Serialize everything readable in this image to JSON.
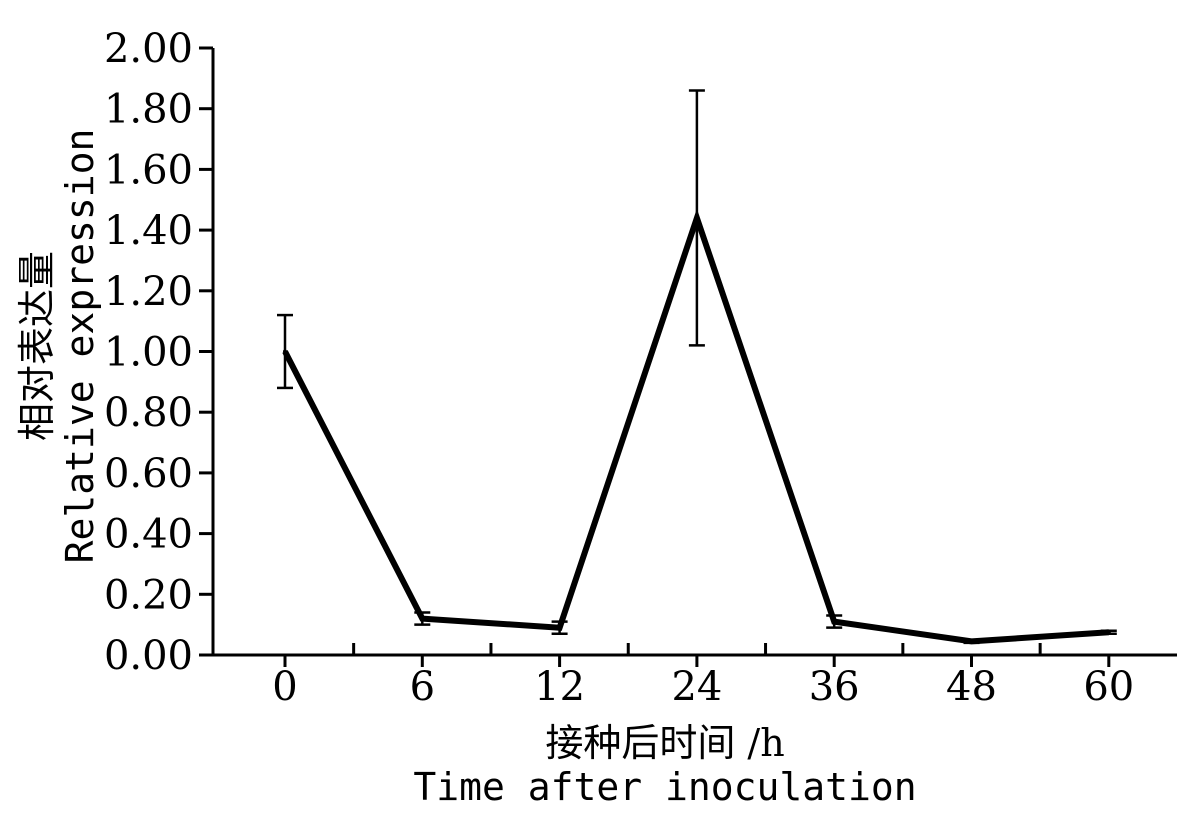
{
  "chart_data": {
    "type": "line",
    "categories": [
      "0",
      "6",
      "12",
      "24",
      "36",
      "48",
      "60"
    ],
    "series": [
      {
        "values": [
          1.0,
          0.12,
          0.09,
          1.44,
          0.11,
          0.045,
          0.075
        ],
        "error": [
          0.12,
          0.02,
          0.02,
          0.42,
          0.02,
          0.005,
          0.005
        ]
      }
    ],
    "y_ticks": [
      "0.00",
      "0.20",
      "0.40",
      "0.60",
      "0.80",
      "1.00",
      "1.20",
      "1.40",
      "1.60",
      "1.80",
      "2.00"
    ],
    "ylim": [
      0,
      2.0
    ],
    "xlabel_cn": "接种后时间 /h",
    "xlabel_en": "Time after inoculation",
    "ylabel_cn": "相对表达量",
    "ylabel_en": "Relative expression",
    "grid": false,
    "line_color": "#000000"
  }
}
